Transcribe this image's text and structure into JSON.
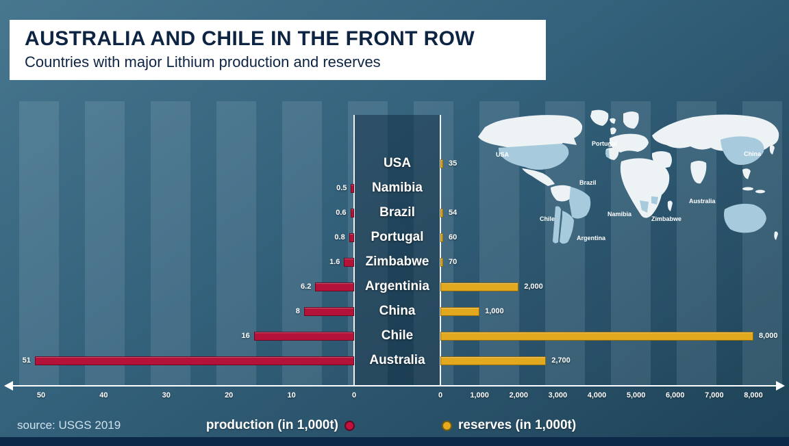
{
  "header": {
    "title": "AUSTRALIA AND CHILE IN THE FRONT ROW",
    "subtitle": "Countries with major Lithium production and reserves"
  },
  "footer": {
    "source": "source: USGS 2019"
  },
  "legend": {
    "production": "production (in 1,000t)",
    "reserves": "reserves (in 1,000t)"
  },
  "colors": {
    "background_top": "#47768f",
    "background_bottom": "#1e4257",
    "production_bar": "#b5123a",
    "reserves_bar": "#e2a91e",
    "title_navy": "#0d2443",
    "bottom_bar_navy": "#0d2949",
    "map_highlight": "#a7cbdc"
  },
  "chart_data": {
    "type": "bar",
    "orientation": "horizontal-diverging",
    "title": "AUSTRALIA AND CHILE IN THE FRONT ROW",
    "subtitle": "Countries with major Lithium production and reserves",
    "categories": [
      "USA",
      "Namibia",
      "Brazil",
      "Portugal",
      "Zimbabwe",
      "Argentinia",
      "China",
      "Chile",
      "Australia"
    ],
    "series": [
      {
        "name": "production (in 1,000t)",
        "color": "#b5123a",
        "direction": "left",
        "axis_max": 50,
        "axis_ticks": [
          "50",
          "40",
          "30",
          "20",
          "10",
          "0"
        ],
        "values": [
          null,
          0.5,
          0.6,
          0.8,
          1.6,
          6.2,
          8,
          16,
          51
        ],
        "labels": [
          "",
          "0.5",
          "0.6",
          "0.8",
          "1.6",
          "6.2",
          "8",
          "16",
          "51"
        ]
      },
      {
        "name": "reserves (in 1,000t)",
        "color": "#e2a91e",
        "direction": "right",
        "axis_max": 8000,
        "axis_ticks": [
          "0",
          "1,000",
          "2,000",
          "3,000",
          "4,000",
          "5,000",
          "6,000",
          "7,000",
          "8,000"
        ],
        "values": [
          35,
          null,
          54,
          60,
          70,
          2000,
          1000,
          8000,
          2700
        ],
        "labels": [
          "35",
          "",
          "54",
          "60",
          "70",
          "2,000",
          "1,000",
          "8,000",
          "2,700"
        ]
      }
    ],
    "legend": [
      "production (in 1,000t)",
      "reserves (in 1,000t)"
    ],
    "legend_position": "bottom",
    "grid": "vertical-bands",
    "source": "source: USGS 2019",
    "map_labels": [
      "USA",
      "Portugal",
      "Brazil",
      "Namibia",
      "Chile",
      "Argentina",
      "Zimbabwe",
      "Australia",
      "China"
    ]
  }
}
